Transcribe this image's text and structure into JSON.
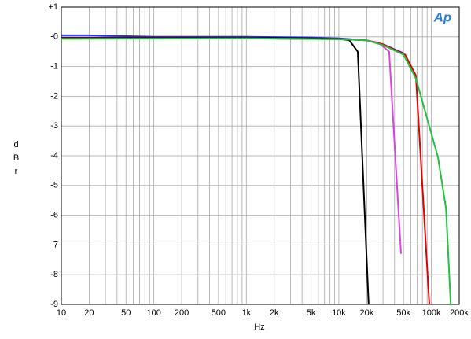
{
  "chart_data": {
    "type": "line",
    "xlabel": "Hz",
    "ylabel": "dBr",
    "logo": "Ap",
    "xscale": "log",
    "xlim": [
      10,
      200000
    ],
    "ylim": [
      -9,
      1
    ],
    "xticks": [
      10,
      20,
      50,
      100,
      200,
      500,
      {
        "value": 1000,
        "label": "1k"
      },
      {
        "value": 2000,
        "label": "2k"
      },
      {
        "value": 5000,
        "label": "5k"
      },
      {
        "value": 10000,
        "label": "10k"
      },
      {
        "value": 20000,
        "label": "20k"
      },
      {
        "value": 50000,
        "label": "50k"
      },
      {
        "value": 100000,
        "label": "100k"
      },
      {
        "value": 200000,
        "label": "200k"
      }
    ],
    "xgrid": [
      10,
      20,
      30,
      40,
      50,
      60,
      70,
      80,
      90,
      100,
      200,
      300,
      400,
      500,
      600,
      700,
      800,
      900,
      1000,
      2000,
      3000,
      4000,
      5000,
      6000,
      7000,
      8000,
      9000,
      10000,
      20000,
      30000,
      40000,
      50000,
      60000,
      70000,
      80000,
      90000,
      100000,
      200000
    ],
    "yticks": [
      {
        "value": 1,
        "label": "+1"
      },
      {
        "value": 0,
        "label": "-0"
      },
      -1,
      -2,
      -3,
      -4,
      -5,
      -6,
      -7,
      -8,
      -9
    ],
    "grid": true,
    "series": [
      {
        "color": "#2a2aff",
        "x": [
          10,
          20,
          100,
          1000,
          5000,
          10000,
          20000,
          30000,
          50000
        ],
        "values": [
          0.05,
          0.05,
          0.0,
          0.0,
          -0.02,
          -0.05,
          -0.12,
          -0.25,
          -0.55
        ]
      },
      {
        "color": "#000000",
        "x": [
          10,
          100,
          1000,
          5000,
          10000,
          13000,
          16000,
          21000
        ],
        "values": [
          -0.03,
          -0.03,
          -0.03,
          -0.05,
          -0.07,
          -0.12,
          -0.5,
          -9
        ]
      },
      {
        "color": "#e040e0",
        "x": [
          10,
          100,
          1000,
          10000,
          20000,
          27000,
          35000,
          47000
        ],
        "values": [
          -0.05,
          -0.05,
          -0.05,
          -0.08,
          -0.12,
          -0.2,
          -0.5,
          -7.3
        ]
      },
      {
        "color": "#e00000",
        "x": [
          10,
          100,
          1000,
          10000,
          20000,
          30000,
          52000,
          68000,
          95000
        ],
        "values": [
          -0.05,
          -0.05,
          -0.05,
          -0.08,
          -0.12,
          -0.25,
          -0.6,
          -1.3,
          -9
        ]
      },
      {
        "color": "#22c040",
        "x": [
          10,
          100,
          1000,
          10000,
          20000,
          30000,
          50000,
          68000,
          118000,
          144000,
          162000
        ],
        "values": [
          -0.07,
          -0.06,
          -0.05,
          -0.08,
          -0.12,
          -0.28,
          -0.6,
          -1.4,
          -4.05,
          -5.77,
          -9
        ]
      }
    ]
  }
}
